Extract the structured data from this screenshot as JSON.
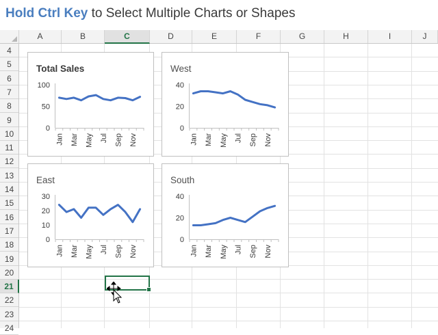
{
  "title": {
    "emphasis": "Hold Ctrl Key",
    "rest": " to Select Multiple Charts or Shapes"
  },
  "columns": [
    "A",
    "B",
    "C",
    "D",
    "E",
    "F",
    "G",
    "H",
    "I",
    "J"
  ],
  "selected_column": "C",
  "rows": [
    "4",
    "5",
    "6",
    "7",
    "8",
    "9",
    "10",
    "11",
    "12",
    "13",
    "14",
    "15",
    "16",
    "17",
    "18",
    "19",
    "20",
    "21",
    "22",
    "23",
    "24"
  ],
  "selected_row": "21",
  "colors": {
    "accent": "#217346",
    "series": "#4472c4",
    "title_emphasis": "#4a7ebf"
  },
  "chart_data": [
    {
      "type": "line",
      "title": "Total Sales",
      "categories": [
        "Jan",
        "Feb",
        "Mar",
        "Apr",
        "May",
        "Jun",
        "Jul",
        "Aug",
        "Sep",
        "Oct",
        "Nov",
        "Dec"
      ],
      "tick_labels": [
        "Jan",
        "Mar",
        "May",
        "Jul",
        "Sep",
        "Nov"
      ],
      "series": [
        {
          "values": [
            70,
            67,
            70,
            64,
            73,
            76,
            67,
            64,
            70,
            69,
            64,
            72
          ]
        }
      ],
      "ylim": [
        0,
        100
      ],
      "yticks": [
        0,
        50,
        100
      ],
      "grid": false
    },
    {
      "type": "line",
      "title": "West",
      "categories": [
        "Jan",
        "Feb",
        "Mar",
        "Apr",
        "May",
        "Jun",
        "Jul",
        "Aug",
        "Sep",
        "Oct",
        "Nov",
        "Dec"
      ],
      "tick_labels": [
        "Jan",
        "Mar",
        "May",
        "Jul",
        "Sep",
        "Nov"
      ],
      "series": [
        {
          "values": [
            32,
            34,
            34,
            33,
            32,
            34,
            31,
            26,
            24,
            22,
            21,
            19
          ]
        }
      ],
      "ylim": [
        0,
        40
      ],
      "yticks": [
        0,
        20,
        40
      ],
      "grid": false
    },
    {
      "type": "line",
      "title": "East",
      "categories": [
        "Jan",
        "Feb",
        "Mar",
        "Apr",
        "May",
        "Jun",
        "Jul",
        "Aug",
        "Sep",
        "Oct",
        "Nov",
        "Dec"
      ],
      "tick_labels": [
        "Jan",
        "Mar",
        "May",
        "Jul",
        "Sep",
        "Nov"
      ],
      "series": [
        {
          "values": [
            24,
            19,
            21,
            15,
            22,
            22,
            17,
            21,
            24,
            19,
            12,
            21
          ]
        }
      ],
      "ylim": [
        0,
        30
      ],
      "yticks": [
        0,
        10,
        20,
        30
      ],
      "grid": false
    },
    {
      "type": "line",
      "title": "South",
      "categories": [
        "Jan",
        "Feb",
        "Mar",
        "Apr",
        "May",
        "Jun",
        "Jul",
        "Aug",
        "Sep",
        "Oct",
        "Nov",
        "Dec"
      ],
      "tick_labels": [
        "Jan",
        "Mar",
        "May",
        "Jul",
        "Sep",
        "Nov"
      ],
      "series": [
        {
          "values": [
            13,
            13,
            14,
            15,
            18,
            20,
            18,
            16,
            21,
            26,
            29,
            31
          ]
        }
      ],
      "ylim": [
        0,
        40
      ],
      "yticks": [
        0,
        20,
        40
      ],
      "grid": false
    }
  ]
}
